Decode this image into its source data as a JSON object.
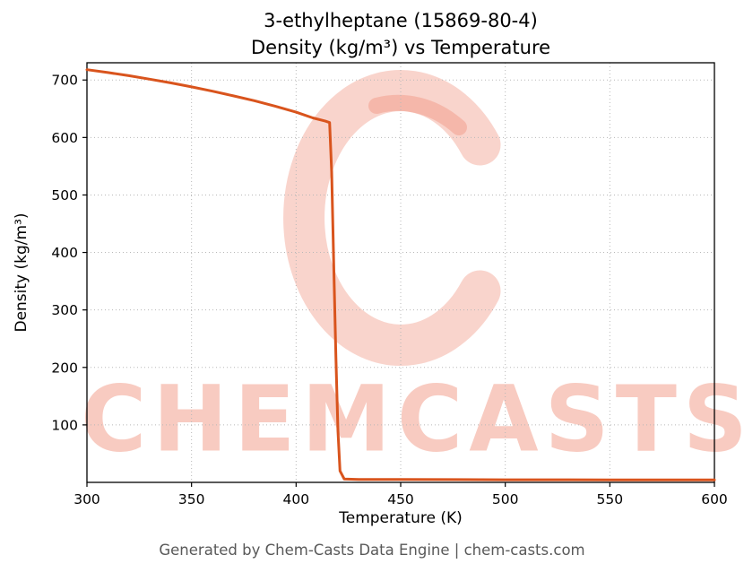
{
  "title": {
    "line1": "3-ethylheptane (15869-80-4)",
    "line2": "Density (kg/m³) vs Temperature"
  },
  "footer": "Generated by Chem-Casts Data Engine | chem-casts.com",
  "watermark": {
    "text": "CHEMCASTS"
  },
  "colors": {
    "line": "#d9541d",
    "grid": "#b8b8b8",
    "watermark": "rgba(232,82,50,0.27)",
    "footer_text": "#595959"
  },
  "chart_data": {
    "type": "line",
    "title": "3-ethylheptane (15869-80-4) — Density (kg/m³) vs Temperature",
    "xlabel": "Temperature (K)",
    "ylabel": "Density (kg/m³)",
    "xlim": [
      300,
      600
    ],
    "ylim": [
      0,
      730
    ],
    "xticks": [
      300,
      350,
      400,
      450,
      500,
      550,
      600
    ],
    "yticks": [
      100,
      200,
      300,
      400,
      500,
      600,
      700
    ],
    "grid": true,
    "grid_style": "dotted",
    "legend": false,
    "series": [
      {
        "name": "density",
        "color": "#d9541d",
        "x": [
          300,
          310,
          320,
          330,
          340,
          350,
          360,
          370,
          380,
          390,
          400,
          408,
          414,
          416,
          417,
          418,
          419,
          420,
          421,
          423,
          430,
          450,
          475,
          500,
          525,
          550,
          575,
          600
        ],
        "y": [
          718,
          713,
          707.5,
          701.5,
          695,
          688,
          680.5,
          672.5,
          664,
          654.5,
          644,
          634,
          628.5,
          626,
          540,
          380,
          220,
          90,
          20,
          6,
          5,
          5,
          4.8,
          4.6,
          4.5,
          4.4,
          4.3,
          4.2
        ]
      }
    ]
  }
}
